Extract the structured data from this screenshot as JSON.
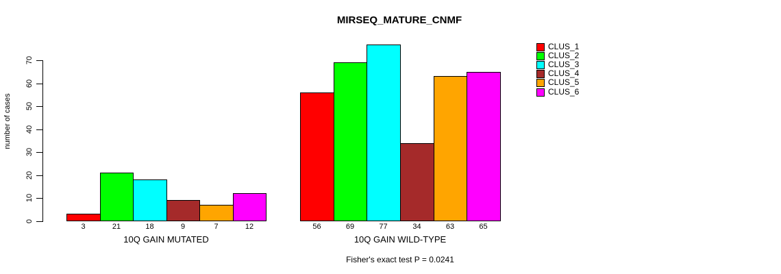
{
  "chart_data": {
    "type": "bar",
    "title": "MIRSEQ_MATURE_CNMF",
    "ylabel": "number of cases",
    "xlabel": "",
    "annotation": "Fisher's exact test P = 0.0241",
    "yticks": [
      0,
      10,
      20,
      30,
      40,
      50,
      60,
      70
    ],
    "ylim": [
      0,
      77
    ],
    "grid": false,
    "legend_position": "right",
    "series": [
      {
        "name": "CLUS_1",
        "color": "#FF0000"
      },
      {
        "name": "CLUS_2",
        "color": "#00FF00"
      },
      {
        "name": "CLUS_3",
        "color": "#00FFFF"
      },
      {
        "name": "CLUS_4",
        "color": "#A52A2A"
      },
      {
        "name": "CLUS_5",
        "color": "#FFA500"
      },
      {
        "name": "CLUS_6",
        "color": "#FF00FF"
      }
    ],
    "groups": [
      {
        "label": "10Q GAIN MUTATED",
        "values": [
          3,
          21,
          18,
          9,
          7,
          12
        ]
      },
      {
        "label": "10Q GAIN WILD-TYPE",
        "values": [
          56,
          69,
          77,
          34,
          63,
          65
        ]
      }
    ]
  }
}
